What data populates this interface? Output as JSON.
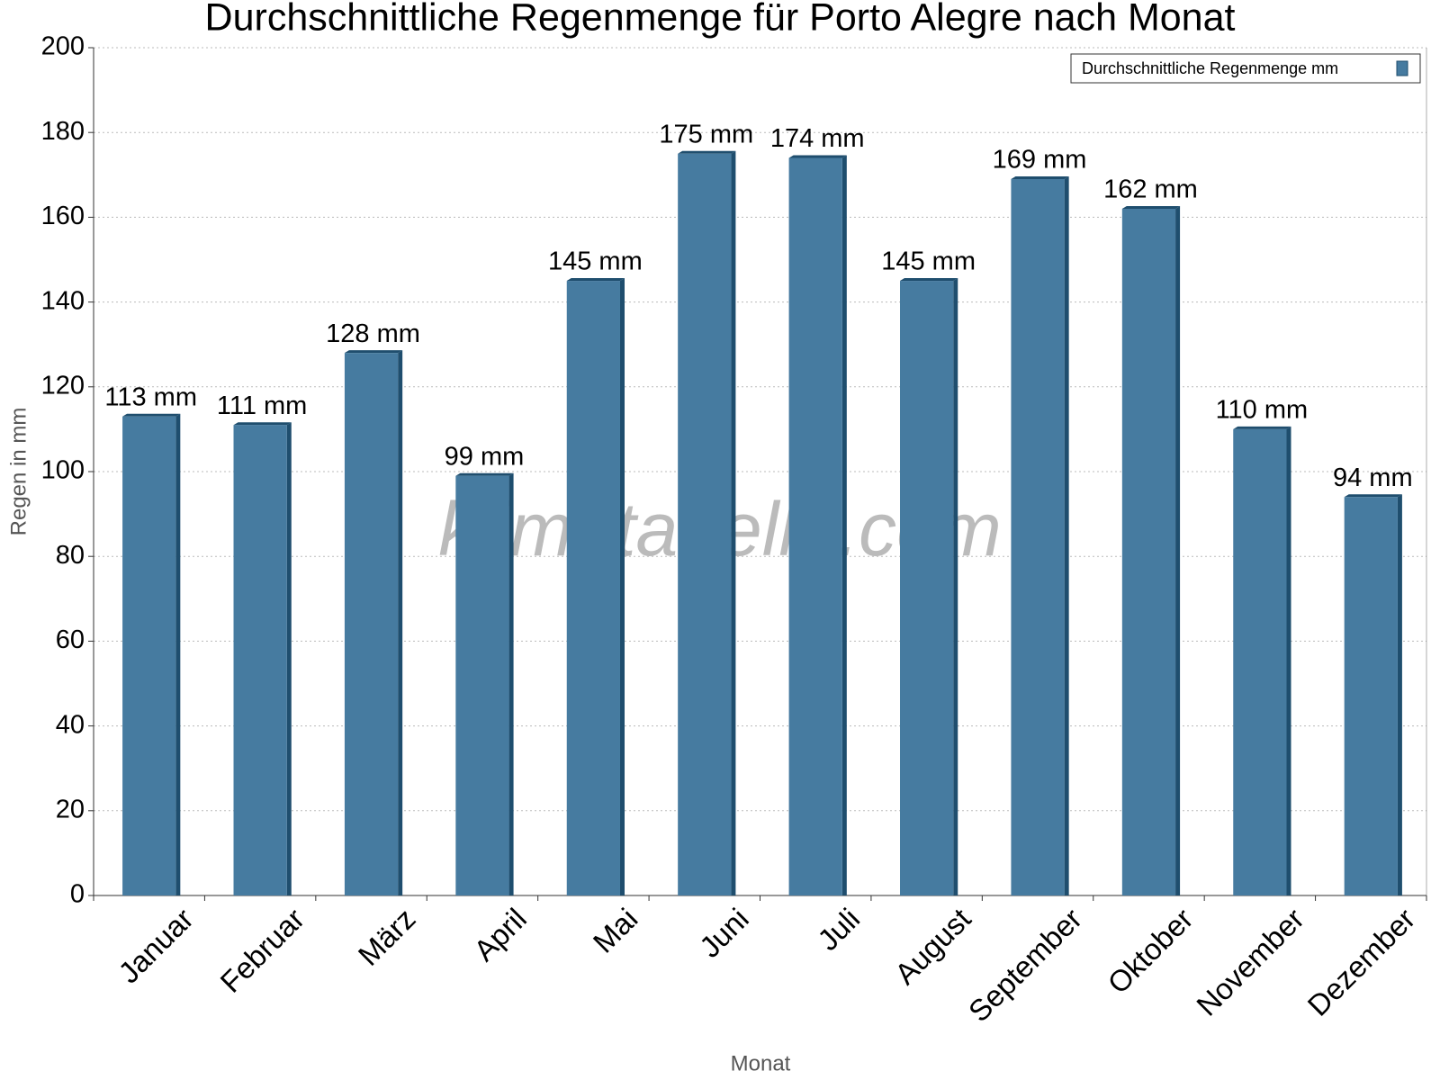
{
  "chart_data": {
    "type": "bar",
    "title": "Durchschnittliche Regenmenge für Porto Alegre nach Monat",
    "x_label": "Monat",
    "y_label": "Regen in mm",
    "watermark": "klimatabelle.com",
    "categories": [
      "Januar",
      "Februar",
      "März",
      "April",
      "Mai",
      "Juni",
      "Juli",
      "August",
      "September",
      "Oktober",
      "November",
      "Dezember"
    ],
    "series": [
      {
        "name": "Durchschnittliche Regenmenge mm",
        "color": "#467ba0",
        "values": [
          113,
          111,
          128,
          99,
          145,
          175,
          174,
          145,
          169,
          162,
          110,
          94
        ],
        "value_labels": [
          "113 mm",
          "111 mm",
          "128 mm",
          "99 mm",
          "145 mm",
          "175 mm",
          "174 mm",
          "145 mm",
          "169 mm",
          "162 mm",
          "110 mm",
          "94 mm"
        ]
      }
    ],
    "ylim": [
      0,
      200
    ],
    "yticks": [
      0,
      20,
      40,
      60,
      80,
      100,
      120,
      140,
      160,
      180,
      200
    ],
    "grid": true,
    "legend": "top-right"
  }
}
